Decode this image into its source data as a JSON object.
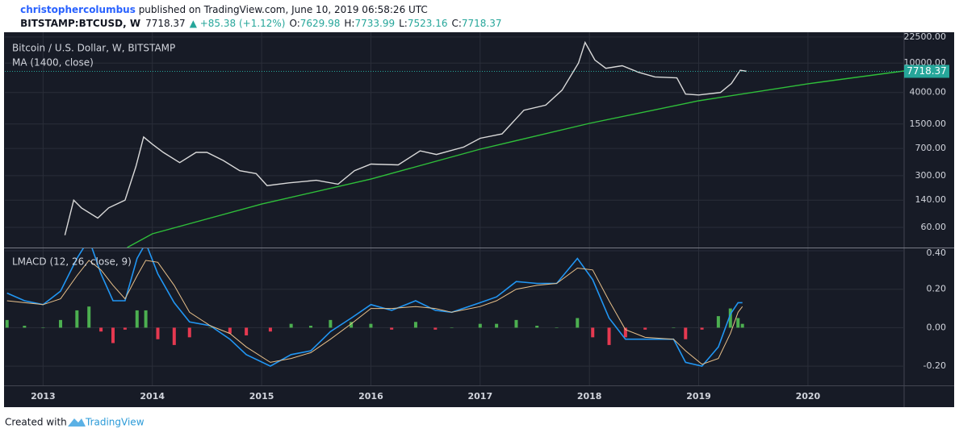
{
  "header": {
    "author": "christophercolumbus",
    "published": " published on TradingView.com, June 10, 2019 06:58:26 UTC",
    "symbol": "BITSTAMP:BTCUSD, W",
    "last": "7718.37",
    "change": "▲ +85.38 (+1.12%)",
    "ohlc": [
      {
        "label": "O:",
        "value": "7629.98"
      },
      {
        "label": "H:",
        "value": "7733.99"
      },
      {
        "label": "L:",
        "value": "7523.16"
      },
      {
        "label": "C:",
        "value": "7718.37"
      }
    ]
  },
  "footer": {
    "text": "Created with",
    "brand": "TradingView"
  },
  "chart_data": [
    {
      "type": "line",
      "title": "Bitcoin / U.S. Dollar, W, BITSTAMP",
      "log_scale": true,
      "grid": true,
      "ylim": [
        32,
        26100
      ],
      "yticks": [
        {
          "value": 60,
          "label": "60.00"
        },
        {
          "value": 140,
          "label": "140.00"
        },
        {
          "value": 300,
          "label": "300.00"
        },
        {
          "value": 700,
          "label": "700.00"
        },
        {
          "value": 1500,
          "label": "1500.00"
        },
        {
          "value": 4000,
          "label": "4000.00"
        },
        {
          "value": 10000,
          "label": "10000.00"
        },
        {
          "value": 22500,
          "label": "22500.00"
        }
      ],
      "last_value": 7718.37,
      "last_color": "#26a69a",
      "series": [
        {
          "color": "#d9d9d9",
          "x": [
            2013.2,
            2013.28,
            2013.35,
            2013.5,
            2013.6,
            2013.75,
            2013.85,
            2013.92,
            2014.0,
            2014.1,
            2014.25,
            2014.4,
            2014.5,
            2014.65,
            2014.8,
            2014.95,
            2015.05,
            2015.25,
            2015.5,
            2015.7,
            2015.85,
            2016.0,
            2016.25,
            2016.45,
            2016.6,
            2016.85,
            2017.0,
            2017.2,
            2017.4,
            2017.6,
            2017.75,
            2017.9,
            2017.96,
            2018.05,
            2018.15,
            2018.3,
            2018.45,
            2018.6,
            2018.8,
            2018.88,
            2019.0,
            2019.2,
            2019.3,
            2019.38,
            2019.44
          ],
          "values": [
            47,
            140,
            110,
            80,
            110,
            140,
            400,
            1000,
            800,
            620,
            450,
            620,
            620,
            480,
            350,
            320,
            220,
            240,
            260,
            230,
            350,
            430,
            420,
            650,
            580,
            730,
            960,
            1100,
            2300,
            2700,
            4300,
            10000,
            19000,
            11000,
            8500,
            9200,
            7500,
            6500,
            6300,
            3800,
            3700,
            4000,
            5300,
            8000,
            7718.37
          ]
        },
        {
          "name": "MA (1400, close)",
          "color": "#2fbf3a",
          "x": [
            2013.77,
            2014,
            2015,
            2016,
            2017,
            2018,
            2019,
            2020,
            2020.88
          ],
          "values": [
            32,
            49,
            124,
            270,
            685,
            1530,
            3090,
            5240,
            7830
          ]
        }
      ]
    },
    {
      "type": "macd",
      "title": "LMACD (12, 26, close, 9)",
      "grid": true,
      "xlim": [
        2012.65,
        2020.88
      ],
      "xticks": [
        2013,
        2014,
        2015,
        2016,
        2017,
        2018,
        2019,
        2020
      ],
      "ylim": [
        -0.3,
        0.4125
      ],
      "yticks": [
        {
          "value": -0.2,
          "label": "-0.20"
        },
        {
          "value": 0,
          "label": "0.00"
        },
        {
          "value": 0.2,
          "label": "0.20"
        },
        {
          "value": 0.4,
          "label": "0.40"
        }
      ],
      "x": [
        2012.67,
        2012.83,
        2013.0,
        2013.16,
        2013.31,
        2013.42,
        2013.53,
        2013.64,
        2013.75,
        2013.86,
        2013.94,
        2014.05,
        2014.2,
        2014.34,
        2014.53,
        2014.71,
        2014.86,
        2015.08,
        2015.27,
        2015.45,
        2015.63,
        2015.82,
        2016.0,
        2016.19,
        2016.41,
        2016.59,
        2016.74,
        2017.0,
        2017.15,
        2017.33,
        2017.52,
        2017.7,
        2017.89,
        2018.03,
        2018.18,
        2018.33,
        2018.51,
        2018.77,
        2018.88,
        2019.03,
        2019.18,
        2019.29,
        2019.36,
        2019.4
      ],
      "series": [
        {
          "color": "#2196f3",
          "values": [
            0.18,
            0.14,
            0.12,
            0.19,
            0.36,
            0.46,
            0.28,
            0.14,
            0.14,
            0.36,
            0.44,
            0.28,
            0.13,
            0.03,
            0.01,
            -0.06,
            -0.14,
            -0.2,
            -0.14,
            -0.12,
            -0.02,
            0.05,
            0.12,
            0.09,
            0.14,
            0.09,
            0.08,
            0.13,
            0.16,
            0.24,
            0.23,
            0.23,
            0.36,
            0.25,
            0.05,
            -0.06,
            -0.06,
            -0.06,
            -0.18,
            -0.2,
            -0.1,
            0.07,
            0.13,
            0.13
          ]
        },
        {
          "color": "#e8c08a",
          "values": [
            0.14,
            0.13,
            0.12,
            0.15,
            0.27,
            0.35,
            0.3,
            0.22,
            0.15,
            0.27,
            0.35,
            0.34,
            0.22,
            0.08,
            0.01,
            -0.03,
            -0.1,
            -0.18,
            -0.16,
            -0.13,
            -0.06,
            0.02,
            0.1,
            0.1,
            0.11,
            0.1,
            0.08,
            0.11,
            0.14,
            0.2,
            0.22,
            0.23,
            0.31,
            0.3,
            0.14,
            -0.01,
            -0.05,
            -0.06,
            -0.12,
            -0.19,
            -0.16,
            -0.03,
            0.08,
            0.11
          ]
        }
      ],
      "histogram": {
        "positive_color": "#4caf50",
        "negative_color": "#e53950",
        "values": [
          0.04,
          0.01,
          0,
          0.04,
          0.09,
          0.11,
          -0.02,
          -0.08,
          -0.01,
          0.09,
          0.09,
          -0.06,
          -0.09,
          -0.05,
          0,
          -0.03,
          -0.04,
          -0.02,
          0.02,
          0.01,
          0.04,
          0.03,
          0.02,
          -0.01,
          0.03,
          -0.01,
          0,
          0.02,
          0.02,
          0.04,
          0.01,
          0,
          0.05,
          -0.05,
          -0.09,
          -0.05,
          -0.01,
          0,
          -0.06,
          -0.01,
          0.06,
          0.1,
          0.05,
          0.02
        ]
      }
    }
  ]
}
